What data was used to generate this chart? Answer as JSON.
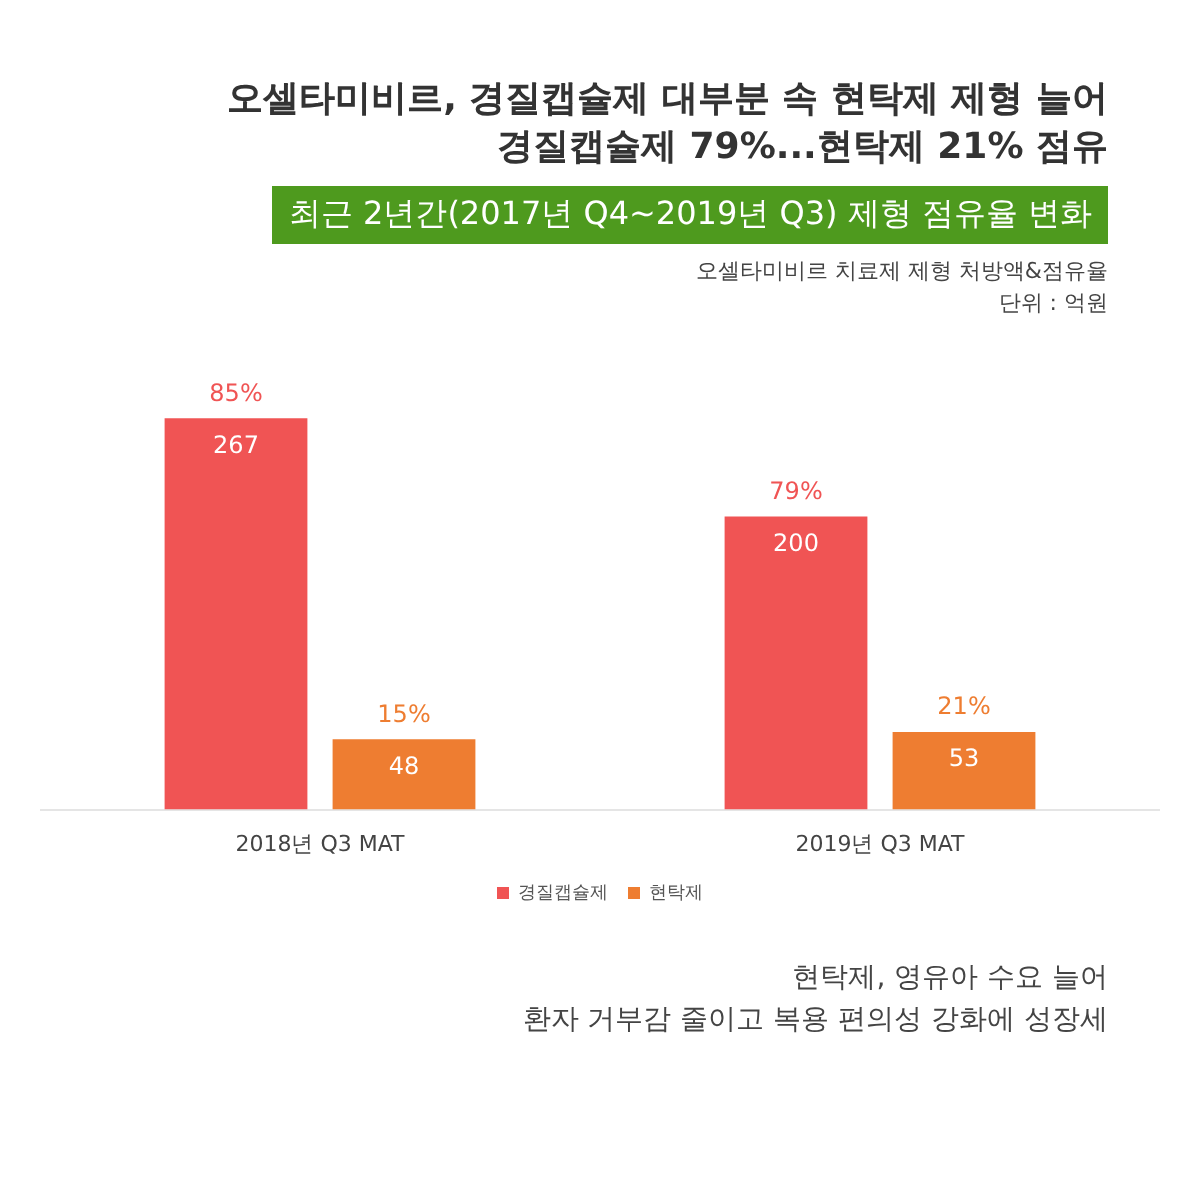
{
  "chart_data": {
    "type": "bar",
    "title": "오셀타미비르, 경질캡슐제 대부분 속 현탁제 제형 늘어\n경질캡슐제 79%...현탁제 21% 점유",
    "subtitle": "최근 2년간(2017년 Q4~2019년 Q3) 제형 점유율 변화",
    "categories": [
      "2018년 Q3 MAT",
      "2019년 Q3 MAT"
    ],
    "series": [
      {
        "name": "경질캡슐제",
        "color": "#f05454",
        "values": [
          267,
          200
        ]
      },
      {
        "name": "현탁제",
        "color": "#ee7d31",
        "values": [
          48,
          53
        ]
      }
    ],
    "data_labels": true,
    "legend": "bottom",
    "grid": false,
    "annotations": [
      "오셀타미비르 치료제 제형 처방액&점유율",
      "단위 : 억원",
      "85%",
      "79%",
      "15%",
      "21%",
      "현탁제, 영유아 수요 늘어\n환자 거부감 줄이고 복용 편의성 강화에 성장세"
    ]
  }
}
